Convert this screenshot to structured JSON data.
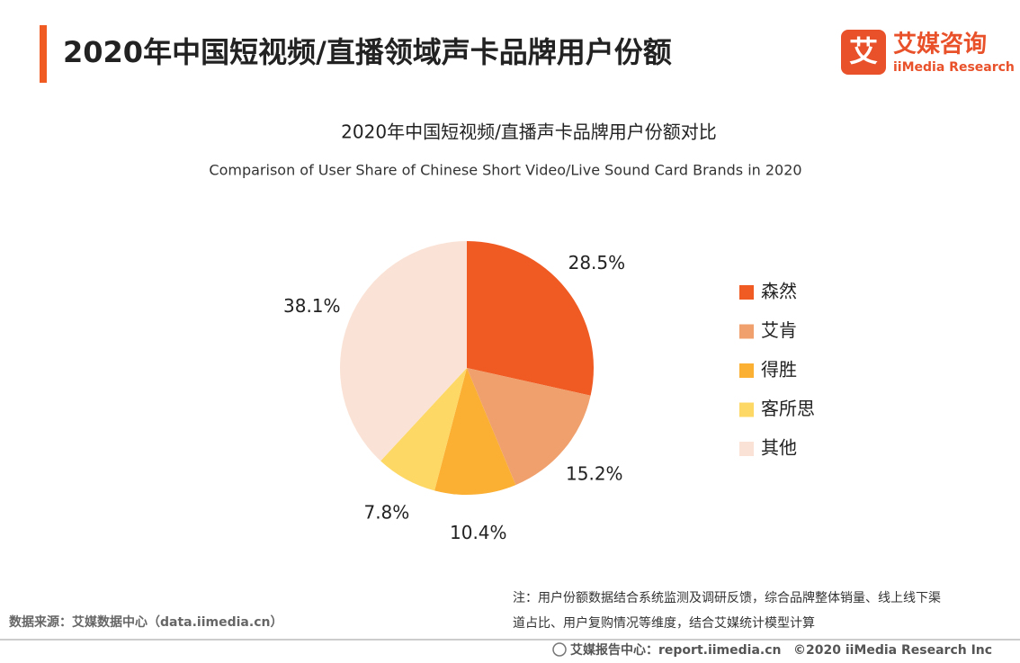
{
  "page": {
    "title": "2020年中国短视频/直播领域声卡品牌用户份额",
    "logo_glyph": "艾",
    "logo_name": "艾媒咨询",
    "logo_english": "iiMedia Research",
    "source": "数据来源：艾媒数据中心（data.iimedia.cn）",
    "note": [
      "注：用户份额数据结合系统监测及调研反馈，综合品牌整体销量、线上线下渠",
      "道占比、用户复购情况等维度，结合艾媒统计模型计算"
    ],
    "footer_link": "艾媒报告中心：report.iimedia.cn",
    "footer_copyright": "©2020  iiMedia Research  Inc"
  },
  "chart_data": {
    "type": "pie",
    "title": "2020年中国短视频/直播声卡品牌用户份额对比",
    "subtitle": "Comparison of User Share of Chinese Short Video/Live Sound Card Brands in 2020",
    "categories": [
      "森然",
      "艾肯",
      "得胜",
      "客所思",
      "其他"
    ],
    "values": [
      28.5,
      15.2,
      10.4,
      7.8,
      38.1
    ],
    "value_labels": [
      "28.5%",
      "15.2%",
      "10.4%",
      "7.8%",
      "38.1%"
    ],
    "colors": [
      "#f05a23",
      "#f0a06c",
      "#fbb034",
      "#fdd865",
      "#fae3d6"
    ]
  }
}
